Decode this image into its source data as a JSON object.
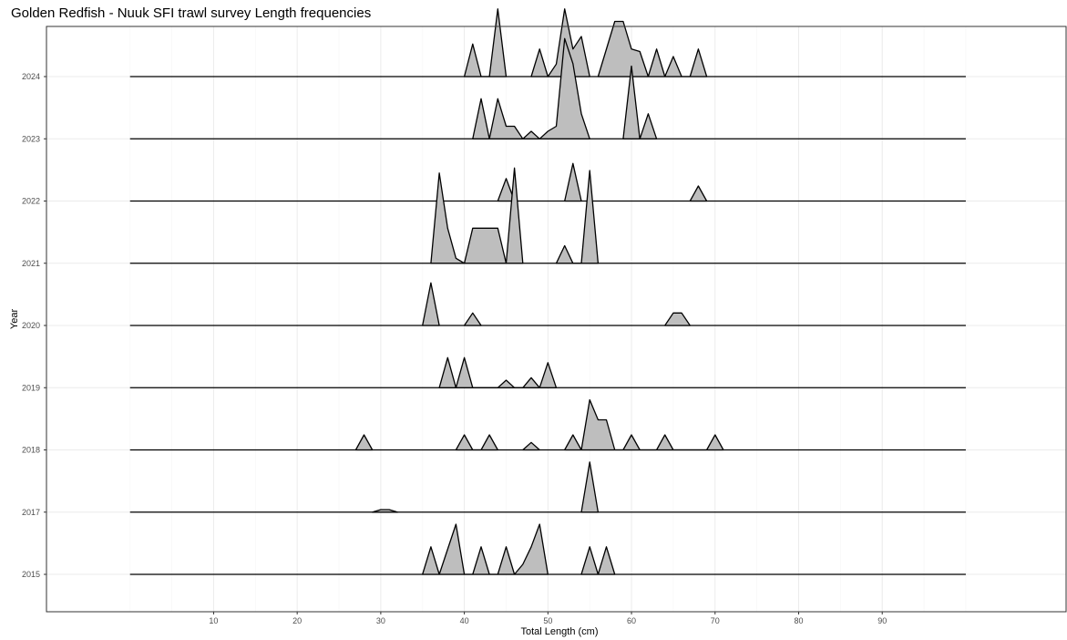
{
  "chart_data": {
    "type": "ridgeline",
    "title": "Golden Redfish - Nuuk SFI trawl survey Length frequencies",
    "xlabel": "Total Length (cm)",
    "ylabel": "Year",
    "xlim": [
      -10,
      112
    ],
    "x_ticks": [
      10,
      20,
      30,
      40,
      50,
      60,
      70,
      80,
      90
    ],
    "x_range": [
      0,
      100
    ],
    "grid": true,
    "series": [
      {
        "name": "2015",
        "points": [
          [
            35,
            0
          ],
          [
            36,
            0.55
          ],
          [
            37,
            0
          ],
          [
            39,
            1.0
          ],
          [
            40,
            0
          ],
          [
            41,
            0
          ],
          [
            42,
            0.55
          ],
          [
            43,
            0
          ],
          [
            44,
            0
          ],
          [
            45,
            0.55
          ],
          [
            46,
            0
          ],
          [
            47,
            0.2
          ],
          [
            48,
            0.55
          ],
          [
            49,
            1.0
          ],
          [
            50,
            0
          ]
        ]
      },
      {
        "name": "2015",
        "points": [
          [
            54,
            0
          ],
          [
            55,
            0.55
          ],
          [
            56,
            0
          ],
          [
            57,
            0.55
          ],
          [
            58,
            0
          ]
        ]
      },
      {
        "name": "2017",
        "points": [
          [
            29,
            0
          ],
          [
            30,
            0.05
          ],
          [
            31,
            0.05
          ],
          [
            32,
            0
          ]
        ]
      },
      {
        "name": "2017",
        "points": [
          [
            54,
            0
          ],
          [
            55,
            1.0
          ],
          [
            56,
            0
          ]
        ]
      },
      {
        "name": "2018",
        "points": [
          [
            27,
            0
          ],
          [
            28,
            0.3
          ],
          [
            29,
            0
          ]
        ]
      },
      {
        "name": "2018",
        "points": [
          [
            39,
            0
          ],
          [
            40,
            0.3
          ],
          [
            41,
            0
          ],
          [
            42,
            0
          ],
          [
            43,
            0.3
          ],
          [
            44,
            0
          ]
        ]
      },
      {
        "name": "2018",
        "points": [
          [
            47,
            0
          ],
          [
            48,
            0.15
          ],
          [
            49,
            0
          ]
        ]
      },
      {
        "name": "2018",
        "points": [
          [
            52,
            0
          ],
          [
            53,
            0.3
          ],
          [
            54,
            0
          ],
          [
            55,
            1.0
          ],
          [
            56,
            0.6
          ],
          [
            57,
            0.6
          ],
          [
            58,
            0
          ],
          [
            59,
            0
          ],
          [
            60,
            0.3
          ],
          [
            61,
            0
          ],
          [
            63,
            0
          ],
          [
            64,
            0.3
          ],
          [
            65,
            0
          ],
          [
            69,
            0
          ],
          [
            70,
            0.3
          ],
          [
            71,
            0
          ]
        ]
      },
      {
        "name": "2019",
        "points": [
          [
            37,
            0
          ],
          [
            38,
            0.6
          ],
          [
            39,
            0
          ],
          [
            40,
            0.6
          ],
          [
            41,
            0
          ],
          [
            44,
            0
          ],
          [
            45,
            0.15
          ],
          [
            46,
            0
          ],
          [
            47,
            0
          ],
          [
            48,
            0.2
          ],
          [
            49,
            0
          ],
          [
            50,
            0.5
          ],
          [
            51,
            0
          ]
        ]
      },
      {
        "name": "2020",
        "points": [
          [
            35,
            0
          ],
          [
            36,
            0.85
          ],
          [
            37,
            0
          ]
        ]
      },
      {
        "name": "2020",
        "points": [
          [
            40,
            0
          ],
          [
            41,
            0.25
          ],
          [
            42,
            0
          ]
        ]
      },
      {
        "name": "2020",
        "points": [
          [
            64,
            0
          ],
          [
            65,
            0.25
          ],
          [
            66,
            0.25
          ],
          [
            67,
            0
          ]
        ]
      },
      {
        "name": "2021",
        "points": [
          [
            36,
            0
          ],
          [
            37,
            1.8
          ],
          [
            38,
            0.7
          ],
          [
            39,
            0.1
          ],
          [
            40,
            0
          ],
          [
            41,
            0.7
          ],
          [
            42,
            0.7
          ],
          [
            43,
            0.7
          ],
          [
            44,
            0.7
          ],
          [
            45,
            0
          ],
          [
            46,
            1.9
          ],
          [
            47,
            0
          ]
        ]
      },
      {
        "name": "2021",
        "points": [
          [
            51,
            0
          ],
          [
            52,
            0.35
          ],
          [
            53,
            0
          ],
          [
            54,
            0
          ],
          [
            55,
            1.85
          ],
          [
            56,
            0
          ]
        ]
      },
      {
        "name": "2022",
        "points": [
          [
            44,
            0
          ],
          [
            45,
            0.45
          ],
          [
            46,
            0
          ]
        ]
      },
      {
        "name": "2022",
        "points": [
          [
            52,
            0
          ],
          [
            53,
            0.75
          ],
          [
            54,
            0
          ]
        ]
      },
      {
        "name": "2022",
        "points": [
          [
            67,
            0
          ],
          [
            68,
            0.3
          ],
          [
            69,
            0
          ]
        ]
      },
      {
        "name": "2023",
        "points": [
          [
            41,
            0
          ],
          [
            42,
            0.8
          ],
          [
            43,
            0
          ],
          [
            44,
            0.8
          ],
          [
            45,
            0.25
          ],
          [
            46,
            0.25
          ],
          [
            47,
            0
          ],
          [
            48,
            0.15
          ],
          [
            49,
            0
          ],
          [
            50,
            0.15
          ],
          [
            51,
            0.25
          ],
          [
            52,
            2.0
          ],
          [
            53,
            1.5
          ],
          [
            54,
            0.5
          ],
          [
            55,
            0
          ]
        ]
      },
      {
        "name": "2023",
        "points": [
          [
            59,
            0
          ],
          [
            60,
            1.45
          ],
          [
            61,
            0
          ],
          [
            62,
            0.5
          ],
          [
            63,
            0
          ]
        ]
      },
      {
        "name": "2024",
        "points": [
          [
            40,
            0
          ],
          [
            41,
            0.65
          ],
          [
            42,
            0
          ],
          [
            43,
            0
          ],
          [
            44,
            1.35
          ],
          [
            45,
            0
          ]
        ]
      },
      {
        "name": "2024",
        "points": [
          [
            48,
            0
          ],
          [
            49,
            0.55
          ],
          [
            50,
            0
          ],
          [
            51,
            0.25
          ],
          [
            52,
            1.35
          ],
          [
            53,
            0.55
          ],
          [
            54,
            0.8
          ],
          [
            55,
            0
          ]
        ]
      },
      {
        "name": "2024",
        "points": [
          [
            56,
            0
          ],
          [
            58,
            1.1
          ],
          [
            59,
            1.1
          ],
          [
            60,
            0.55
          ],
          [
            61,
            0.5
          ],
          [
            62,
            0
          ],
          [
            63,
            0.55
          ],
          [
            64,
            0
          ],
          [
            65,
            0.4
          ],
          [
            66,
            0
          ],
          [
            67,
            0
          ],
          [
            68,
            0.55
          ],
          [
            69,
            0
          ]
        ]
      }
    ],
    "years": [
      "2015",
      "2017",
      "2018",
      "2019",
      "2020",
      "2021",
      "2022",
      "2023",
      "2024"
    ]
  }
}
